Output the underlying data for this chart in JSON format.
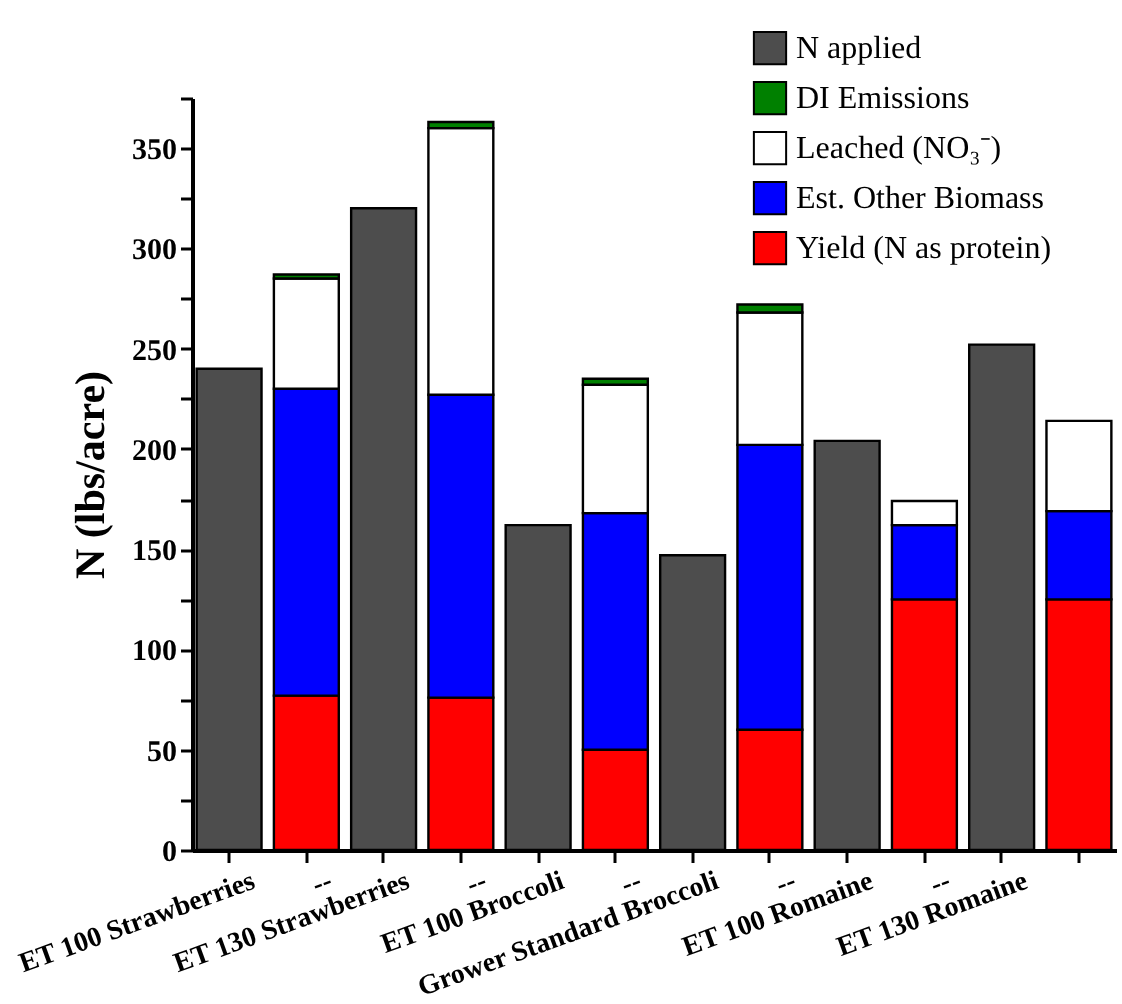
{
  "chart_data": {
    "type": "bar",
    "stacked": true,
    "ylabel": "N (lbs/acre)",
    "categories": [
      "ET 100 Strawberries",
      "--",
      "ET 130 Strawberries",
      "--",
      "ET 100 Broccoli",
      "--",
      "Grower Standard Broccoli",
      "--",
      "ET 100 Romaine",
      "--",
      "ET 130 Romaine",
      null
    ],
    "series": [
      {
        "name": "Yield (N as protein)",
        "color": "#ff0000",
        "values": [
          null,
          77,
          null,
          76,
          null,
          50,
          null,
          60,
          null,
          125,
          null,
          125
        ]
      },
      {
        "name": "Est. Other Biomass",
        "color": "#0000ff",
        "values": [
          null,
          153,
          null,
          151,
          null,
          118,
          null,
          142,
          null,
          37,
          null,
          44
        ]
      },
      {
        "name": "Leached (NO₃⁻)",
        "color": "#ffffff",
        "values": [
          null,
          55,
          null,
          133,
          null,
          64,
          null,
          66,
          null,
          12,
          null,
          45
        ]
      },
      {
        "name": "DI Emissions",
        "color": "#008000",
        "values": [
          null,
          2,
          null,
          3,
          null,
          3,
          null,
          4,
          null,
          null,
          null,
          null
        ]
      },
      {
        "name": "N applied",
        "color": "#4d4d4d",
        "values": [
          240,
          null,
          320,
          null,
          162,
          null,
          147,
          null,
          204,
          null,
          252,
          null
        ]
      }
    ],
    "ylim": [
      0,
      375
    ],
    "yticks": [
      0,
      {
        "value": 25,
        "label": null
      },
      50,
      {
        "value": 75,
        "label": null
      },
      100,
      {
        "value": 125,
        "label": null
      },
      150,
      {
        "value": 175,
        "label": null
      },
      200,
      {
        "value": 225,
        "label": null
      },
      250,
      {
        "value": 275,
        "label": null
      },
      300,
      {
        "value": 325,
        "label": null
      },
      350,
      {
        "value": 375,
        "label": null
      }
    ],
    "legend": "top right",
    "grid": false
  }
}
